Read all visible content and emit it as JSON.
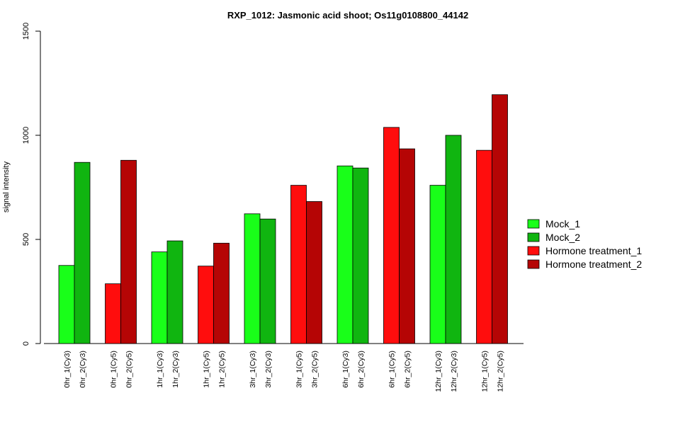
{
  "chart_data": {
    "type": "bar",
    "title": "RXP_1012: Jasmonic acid shoot; Os11g0108800_44142",
    "xlabel": "",
    "ylabel": "signal intensity",
    "ylim": [
      0,
      1500
    ],
    "yticks": [
      0,
      500,
      1000,
      1500
    ],
    "grid": false,
    "legend_position": "right",
    "groups": [
      {
        "bars": [
          {
            "label": "0hr_1(Cy3)",
            "value": 375,
            "series": "Mock_1"
          },
          {
            "label": "0hr_2(Cy3)",
            "value": 870,
            "series": "Mock_2"
          }
        ]
      },
      {
        "bars": [
          {
            "label": "0hr_1(Cy5)",
            "value": 287,
            "series": "Hormone treatment_1"
          },
          {
            "label": "0hr_2(Cy5)",
            "value": 880,
            "series": "Hormone treatment_2"
          }
        ]
      },
      {
        "bars": [
          {
            "label": "1hr_1(Cy3)",
            "value": 440,
            "series": "Mock_1"
          },
          {
            "label": "1hr_2(Cy3)",
            "value": 493,
            "series": "Mock_2"
          }
        ]
      },
      {
        "bars": [
          {
            "label": "1hr_1(Cy5)",
            "value": 372,
            "series": "Hormone treatment_1"
          },
          {
            "label": "1hr_2(Cy5)",
            "value": 482,
            "series": "Hormone treatment_2"
          }
        ]
      },
      {
        "bars": [
          {
            "label": "3hr_1(Cy3)",
            "value": 623,
            "series": "Mock_1"
          },
          {
            "label": "3hr_2(Cy3)",
            "value": 598,
            "series": "Mock_2"
          }
        ]
      },
      {
        "bars": [
          {
            "label": "3hr_1(Cy5)",
            "value": 760,
            "series": "Hormone treatment_1"
          },
          {
            "label": "3hr_2(Cy5)",
            "value": 682,
            "series": "Hormone treatment_2"
          }
        ]
      },
      {
        "bars": [
          {
            "label": "6hr_1(Cy3)",
            "value": 853,
            "series": "Mock_1"
          },
          {
            "label": "6hr_2(Cy3)",
            "value": 843,
            "series": "Mock_2"
          }
        ]
      },
      {
        "bars": [
          {
            "label": "6hr_1(Cy5)",
            "value": 1038,
            "series": "Hormone treatment_1"
          },
          {
            "label": "6hr_2(Cy5)",
            "value": 935,
            "series": "Hormone treatment_2"
          }
        ]
      },
      {
        "bars": [
          {
            "label": "12hr_1(Cy3)",
            "value": 760,
            "series": "Mock_1"
          },
          {
            "label": "12hr_2(Cy3)",
            "value": 1000,
            "series": "Mock_2"
          }
        ]
      },
      {
        "bars": [
          {
            "label": "12hr_1(Cy5)",
            "value": 928,
            "series": "Hormone treatment_1"
          },
          {
            "label": "12hr_2(Cy5)",
            "value": 1195,
            "series": "Hormone treatment_2"
          }
        ]
      }
    ],
    "series": [
      {
        "name": "Mock_1",
        "color": "#19ff19"
      },
      {
        "name": "Mock_2",
        "color": "#10b510"
      },
      {
        "name": "Hormone treatment_1",
        "color": "#ff0d0d"
      },
      {
        "name": "Hormone treatment_2",
        "color": "#b50505"
      }
    ]
  }
}
